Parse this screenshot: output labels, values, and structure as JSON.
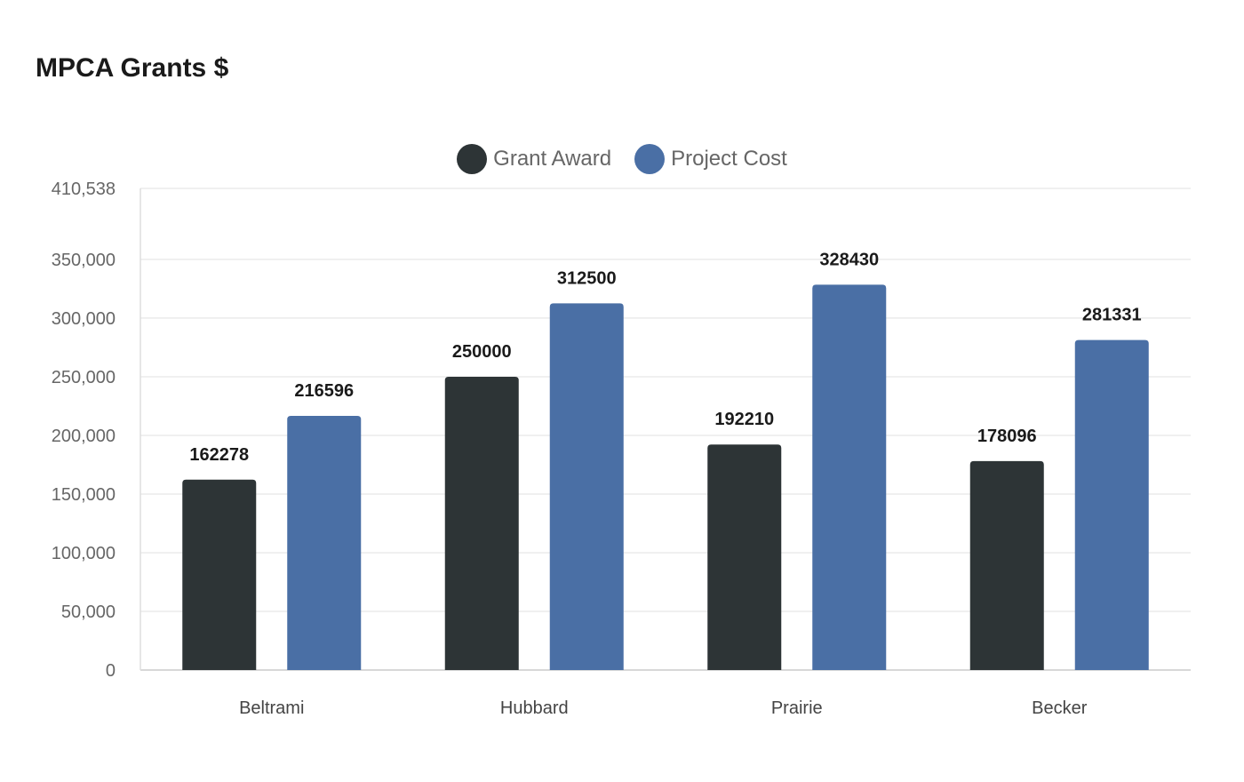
{
  "chart_data": {
    "type": "bar",
    "title": "MPCA Grants $",
    "categories": [
      "Beltrami",
      "Hubbard",
      "Prairie",
      "Becker"
    ],
    "series": [
      {
        "name": "Grant Award",
        "color": "#2d3436",
        "values": [
          162278,
          250000,
          192210,
          178096
        ]
      },
      {
        "name": "Project Cost",
        "color": "#4a6fa5",
        "values": [
          216596,
          312500,
          328430,
          281331
        ]
      }
    ],
    "ylim": [
      0,
      410538
    ],
    "yticks": [
      0,
      50000,
      100000,
      150000,
      200000,
      250000,
      300000,
      350000,
      410538
    ],
    "ytick_labels": [
      "0",
      "50,000",
      "100,000",
      "150,000",
      "200,000",
      "250,000",
      "300,000",
      "350,000",
      "410,538"
    ],
    "xlabel": "",
    "ylabel": "",
    "grid": true,
    "legend": "top-center",
    "data_labels": true
  }
}
